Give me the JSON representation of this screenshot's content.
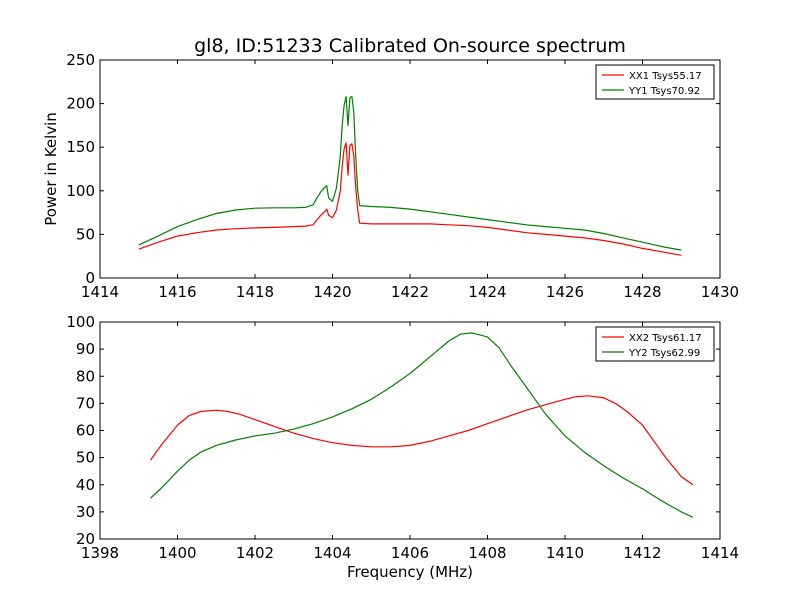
{
  "chart_data": [
    {
      "type": "line",
      "title": "gl8, ID:51233 Calibrated On-source spectrum",
      "xlabel": "",
      "ylabel": "Power in Kelvin",
      "xlim": [
        1414,
        1430
      ],
      "ylim": [
        0,
        250
      ],
      "xticks": [
        "1414",
        "1416",
        "1418",
        "1420",
        "1422",
        "1424",
        "1426",
        "1428",
        "1430"
      ],
      "yticks": [
        "0",
        "50",
        "100",
        "150",
        "200",
        "250"
      ],
      "grid": false,
      "legend_position": "top-right",
      "series": [
        {
          "name": "XX1 Tsys55.17",
          "color": "#ff0000",
          "x": [
            1415.0,
            1415.5,
            1416.0,
            1416.5,
            1417.0,
            1417.5,
            1418.0,
            1418.5,
            1419.0,
            1419.3,
            1419.5,
            1419.6,
            1419.7,
            1419.8,
            1419.85,
            1419.9,
            1420.0,
            1420.1,
            1420.2,
            1420.25,
            1420.3,
            1420.35,
            1420.4,
            1420.45,
            1420.5,
            1420.55,
            1420.6,
            1420.65,
            1420.7,
            1421.0,
            1421.5,
            1422.0,
            1422.5,
            1423.0,
            1423.5,
            1424.0,
            1424.5,
            1425.0,
            1425.5,
            1426.0,
            1426.5,
            1427.0,
            1427.5,
            1428.0,
            1428.5,
            1429.0
          ],
          "y": [
            33,
            41,
            48,
            52,
            55,
            56.5,
            57.5,
            58,
            59,
            59.5,
            61,
            67,
            72,
            76,
            79,
            72,
            69,
            78,
            100,
            128,
            148,
            155,
            118,
            152,
            154,
            140,
            104,
            78,
            63,
            62,
            62,
            62,
            62,
            61,
            60,
            58,
            55,
            52,
            50,
            48,
            46,
            43,
            39,
            34,
            30,
            26
          ]
        },
        {
          "name": "YY1 Tsys70.92",
          "color": "#008000",
          "x": [
            1415.0,
            1415.5,
            1416.0,
            1416.5,
            1417.0,
            1417.5,
            1418.0,
            1418.5,
            1419.0,
            1419.3,
            1419.5,
            1419.6,
            1419.7,
            1419.8,
            1419.85,
            1419.9,
            1420.0,
            1420.1,
            1420.2,
            1420.25,
            1420.3,
            1420.35,
            1420.4,
            1420.45,
            1420.5,
            1420.55,
            1420.6,
            1420.65,
            1420.7,
            1421.0,
            1421.5,
            1422.0,
            1422.5,
            1423.0,
            1423.5,
            1424.0,
            1424.5,
            1425.0,
            1425.5,
            1426.0,
            1426.5,
            1427.0,
            1427.5,
            1428.0,
            1428.5,
            1429.0
          ],
          "y": [
            38,
            48,
            59,
            67,
            74,
            78,
            80,
            80.5,
            80.5,
            81,
            84,
            92,
            99,
            104,
            106,
            92,
            88,
            103,
            140,
            175,
            198,
            208,
            175,
            207,
            208,
            190,
            140,
            100,
            83,
            82,
            81,
            79,
            76,
            73,
            70,
            67,
            64,
            61,
            59,
            57,
            55,
            51,
            46,
            41,
            36,
            32
          ]
        }
      ]
    },
    {
      "type": "line",
      "title": "",
      "xlabel": "Frequency (MHz)",
      "ylabel": "",
      "xlim": [
        1398,
        1414
      ],
      "ylim": [
        20,
        100
      ],
      "xticks": [
        "1398",
        "1400",
        "1402",
        "1404",
        "1406",
        "1408",
        "1410",
        "1412",
        "1414"
      ],
      "yticks": [
        "20",
        "30",
        "40",
        "50",
        "60",
        "70",
        "80",
        "90",
        "100"
      ],
      "grid": false,
      "legend_position": "top-right",
      "series": [
        {
          "name": "XX2 Tsys61.17",
          "color": "#ff0000",
          "x": [
            1399.3,
            1399.6,
            1400.0,
            1400.3,
            1400.6,
            1401.0,
            1401.3,
            1401.6,
            1402.0,
            1402.3,
            1402.6,
            1403.0,
            1403.5,
            1404.0,
            1404.5,
            1405.0,
            1405.5,
            1406.0,
            1406.5,
            1407.0,
            1407.5,
            1408.0,
            1408.5,
            1409.0,
            1409.5,
            1410.0,
            1410.3,
            1410.6,
            1411.0,
            1411.3,
            1411.6,
            1412.0,
            1412.3,
            1412.6,
            1413.0,
            1413.3
          ],
          "y": [
            49,
            55,
            62,
            65.5,
            67,
            67.5,
            67,
            66,
            64,
            62.5,
            61,
            59,
            57,
            55.5,
            54.5,
            54,
            54,
            54.5,
            56,
            58,
            60,
            62.5,
            65,
            67.5,
            69.5,
            71.5,
            72.5,
            72.8,
            72,
            70,
            67,
            62,
            56,
            50,
            43,
            40
          ]
        },
        {
          "name": "YY2 Tsys62.99",
          "color": "#008000",
          "x": [
            1399.3,
            1399.6,
            1400.0,
            1400.3,
            1400.6,
            1401.0,
            1401.5,
            1402.0,
            1402.5,
            1403.0,
            1403.5,
            1404.0,
            1404.5,
            1405.0,
            1405.5,
            1406.0,
            1406.5,
            1407.0,
            1407.3,
            1407.6,
            1408.0,
            1408.3,
            1408.6,
            1409.0,
            1409.5,
            1410.0,
            1410.5,
            1411.0,
            1411.5,
            1412.0,
            1412.5,
            1413.0,
            1413.3
          ],
          "y": [
            35,
            39,
            45,
            49,
            52,
            54.5,
            56.5,
            58,
            59,
            60.5,
            62.5,
            65,
            68,
            71.5,
            76,
            81,
            87,
            93,
            95.5,
            96,
            94.5,
            90.5,
            84,
            76,
            66,
            58,
            52,
            47,
            42.5,
            38.5,
            34,
            30,
            28
          ]
        }
      ]
    }
  ]
}
